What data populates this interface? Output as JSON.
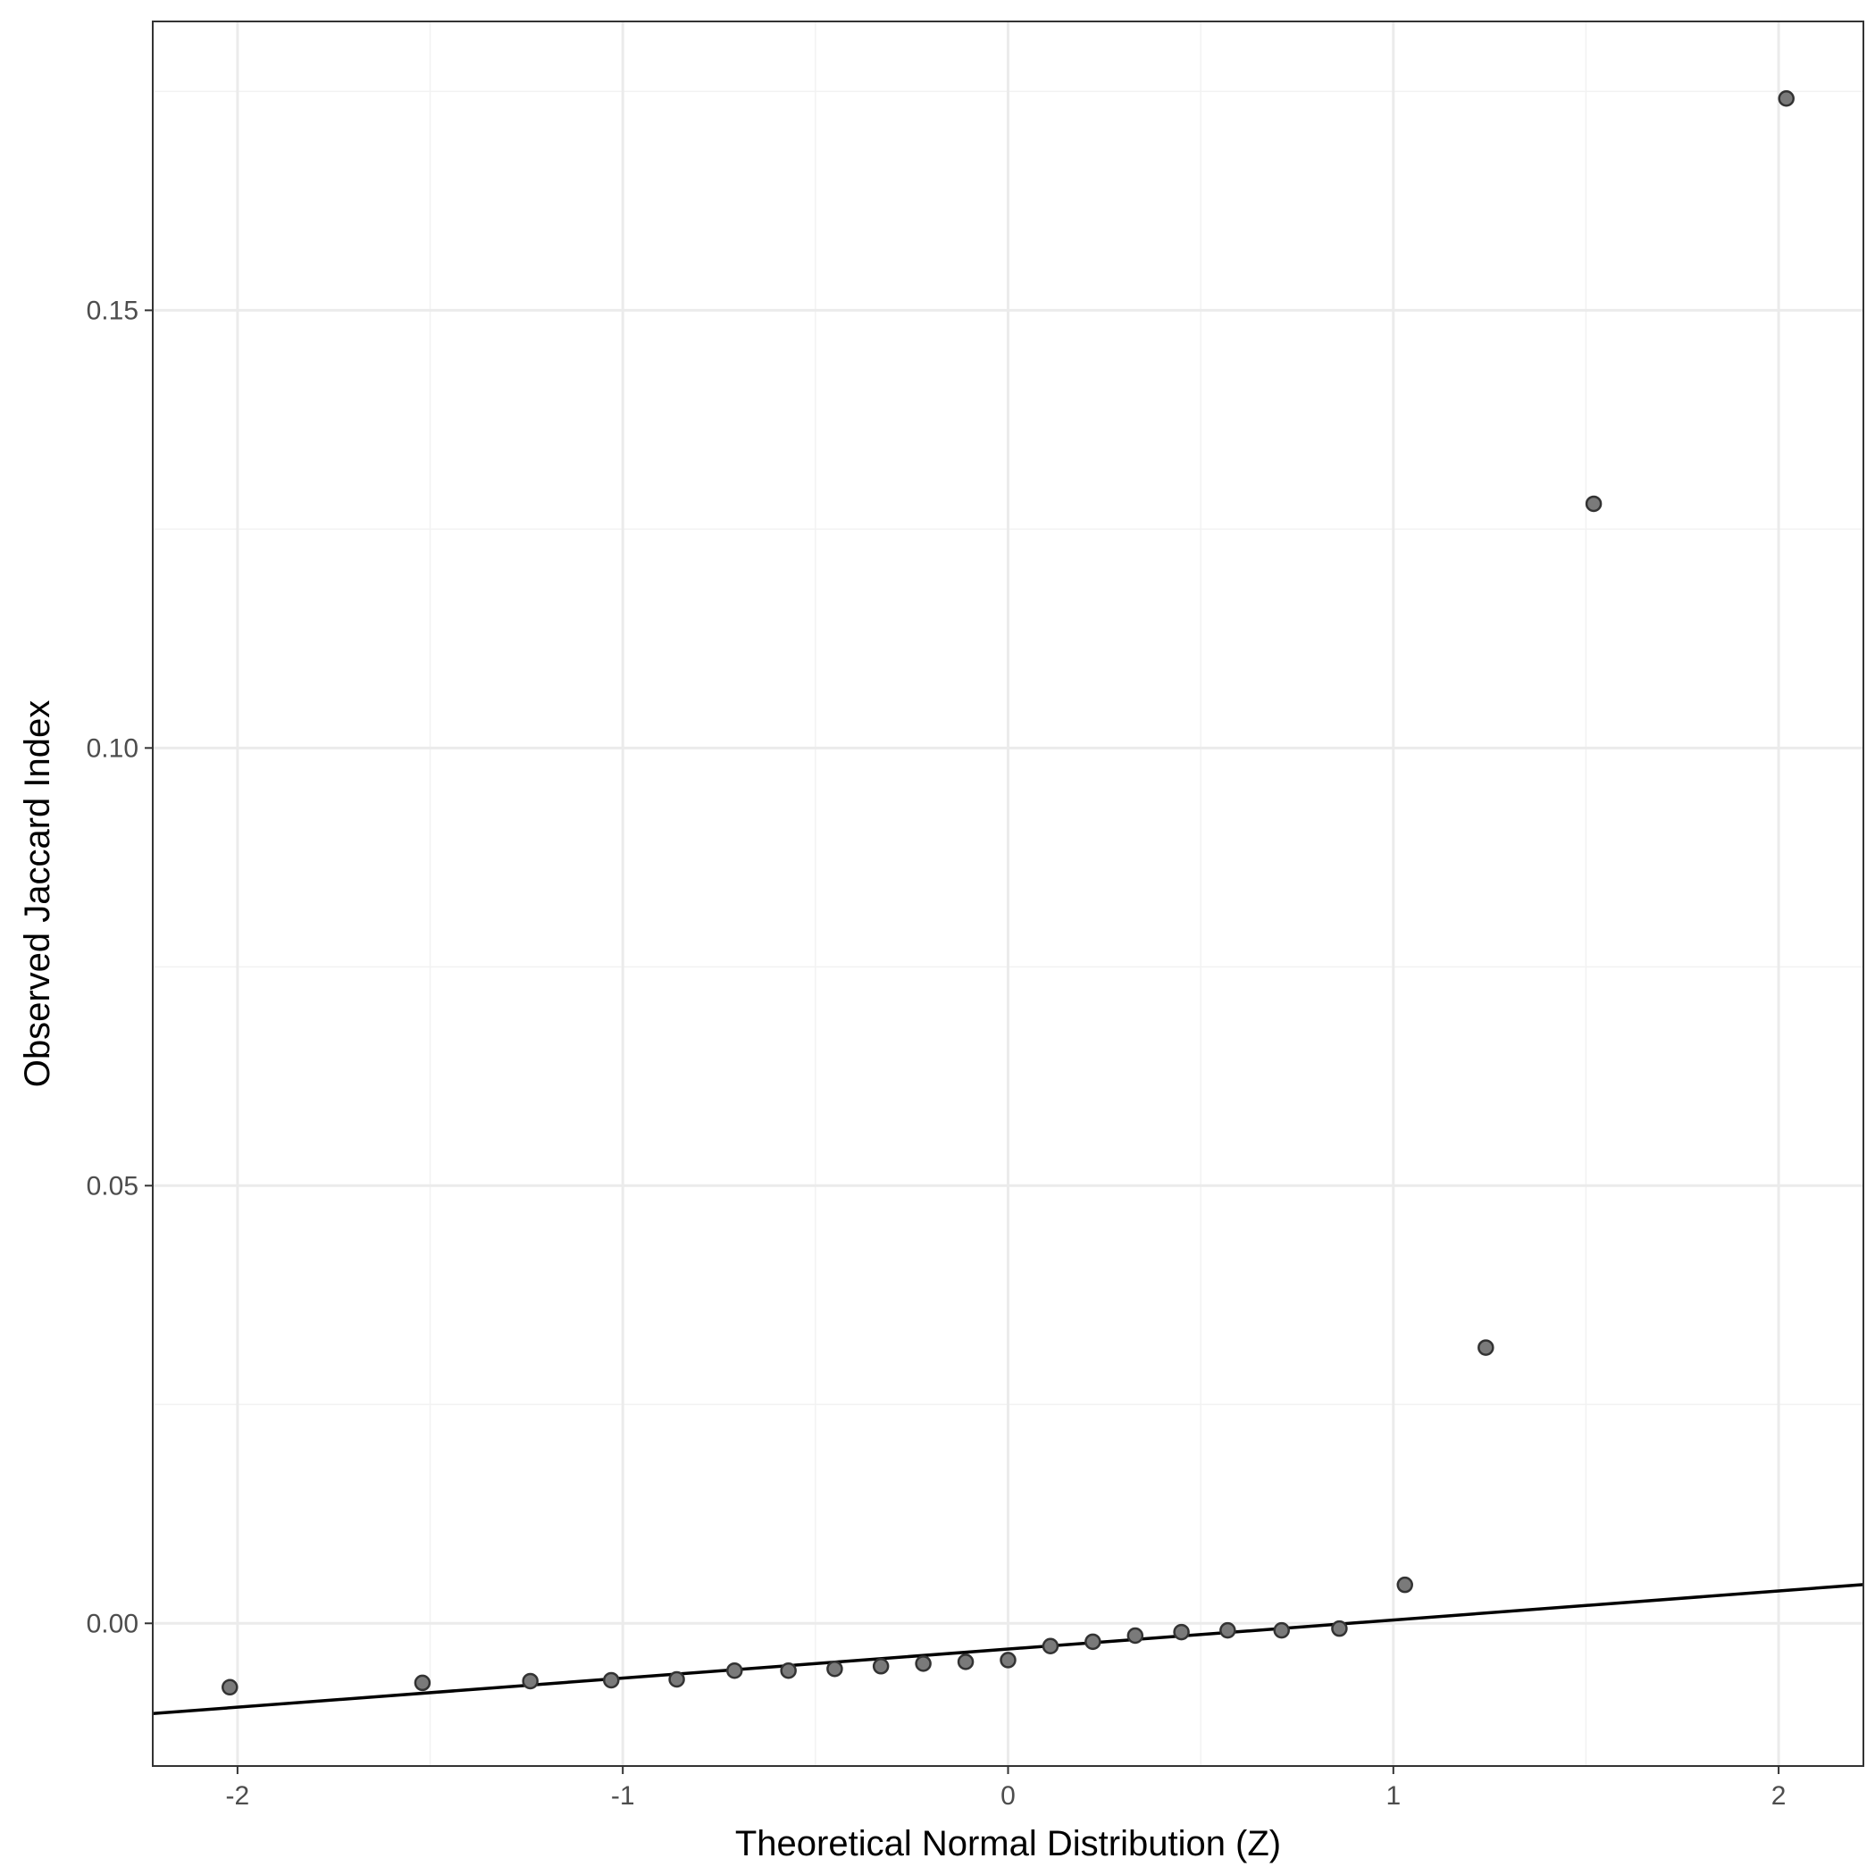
{
  "chart_data": {
    "type": "scatter",
    "title": "",
    "xlabel": "Theoretical Normal Distribution (Z)",
    "ylabel": "Observed Jaccard Index",
    "xlim": [
      -2.22,
      2.22
    ],
    "ylim": [
      -0.0163,
      0.183
    ],
    "x_ticks": [
      -2,
      -1,
      0,
      1,
      2
    ],
    "x_tick_labels": [
      "-2",
      "-1",
      "0",
      "1",
      "2"
    ],
    "y_ticks": [
      0.0,
      0.05,
      0.1,
      0.15
    ],
    "y_tick_labels": [
      "0.00",
      "0.05",
      "0.10",
      "0.15"
    ],
    "grid": true,
    "points": [
      {
        "x": -2.02,
        "y": -0.0073
      },
      {
        "x": -1.52,
        "y": -0.0068
      },
      {
        "x": -1.24,
        "y": -0.0066
      },
      {
        "x": -1.03,
        "y": -0.0065
      },
      {
        "x": -0.86,
        "y": -0.0064
      },
      {
        "x": -0.71,
        "y": -0.0054
      },
      {
        "x": -0.57,
        "y": -0.0054
      },
      {
        "x": -0.45,
        "y": -0.0052
      },
      {
        "x": -0.33,
        "y": -0.0049
      },
      {
        "x": -0.22,
        "y": -0.0046
      },
      {
        "x": -0.11,
        "y": -0.0044
      },
      {
        "x": 0.0,
        "y": -0.0042
      },
      {
        "x": 0.11,
        "y": -0.0026
      },
      {
        "x": 0.22,
        "y": -0.0021
      },
      {
        "x": 0.33,
        "y": -0.0014
      },
      {
        "x": 0.45,
        "y": -0.001
      },
      {
        "x": 0.57,
        "y": -0.0008
      },
      {
        "x": 0.71,
        "y": -0.0008
      },
      {
        "x": 0.86,
        "y": -0.0006
      },
      {
        "x": 1.03,
        "y": 0.0044
      },
      {
        "x": 1.24,
        "y": 0.0315
      },
      {
        "x": 1.52,
        "y": 0.1279
      },
      {
        "x": 2.02,
        "y": 0.1742
      }
    ],
    "reference_line": {
      "intercept": -0.00294,
      "slope": 0.00332
    },
    "colors": {
      "point_fill": "#7a7a7a",
      "point_stroke": "#333333",
      "line": "#000000",
      "grid_major": "#ebebeb",
      "grid_minor": "#f2f2f2",
      "panel_border": "#333333"
    }
  }
}
